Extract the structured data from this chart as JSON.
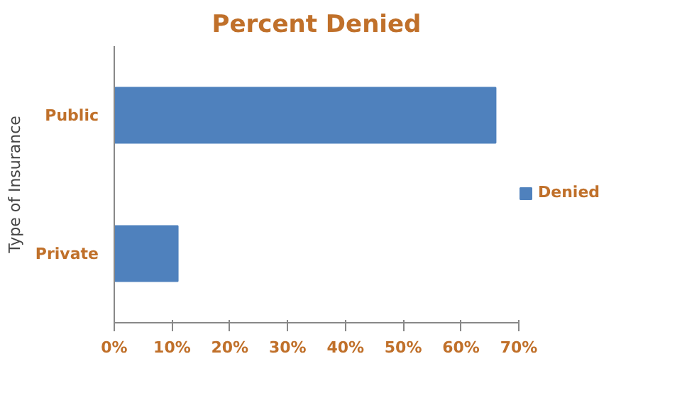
{
  "chart_data": {
    "type": "bar",
    "orientation": "horizontal",
    "title": "Percent Denied",
    "ylabel": "Type of Insurance",
    "categories": [
      "Public",
      "Private"
    ],
    "series": [
      {
        "name": "Denied",
        "color": "#4f81bd",
        "values": [
          66,
          11
        ]
      }
    ],
    "xlim": [
      0,
      70
    ],
    "xticks": [
      {
        "value": 0,
        "label": "0%"
      },
      {
        "value": 10,
        "label": "10%"
      },
      {
        "value": 20,
        "label": "20%"
      },
      {
        "value": 30,
        "label": "30%"
      },
      {
        "value": 40,
        "label": "40%"
      },
      {
        "value": 50,
        "label": "50%"
      },
      {
        "value": 60,
        "label": "60%"
      },
      {
        "value": 70,
        "label": "70%"
      }
    ],
    "grid": false,
    "legend": "right"
  }
}
